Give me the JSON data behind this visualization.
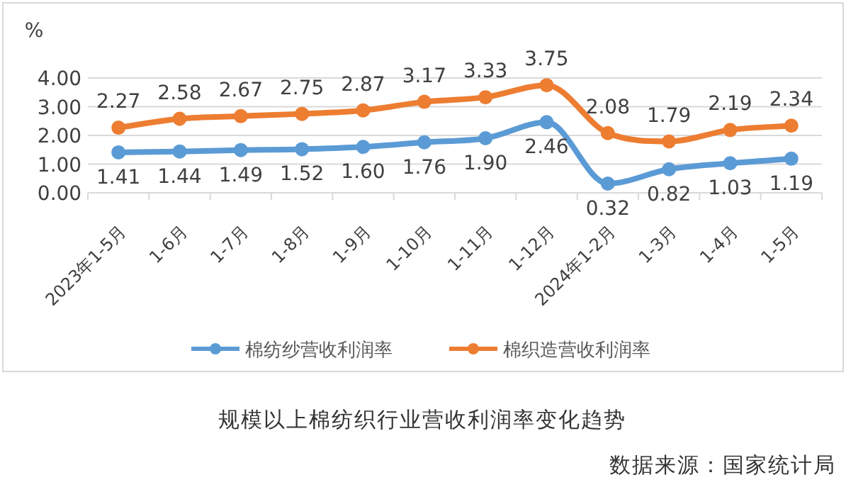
{
  "chart_data": {
    "type": "line",
    "title": "规模以上棉纺织行业营收利润率变化趋势",
    "ylabel": "%",
    "annotations": [
      "数据来源：国家统计局"
    ],
    "categories": [
      "2023年1-5月",
      "1-6月",
      "1-7月",
      "1-8月",
      "1-9月",
      "1-10月",
      "1-11月",
      "1-12月",
      "2024年1-2月",
      "1-3月",
      "1-4月",
      "1-5月"
    ],
    "series": [
      {
        "name": "棉纺纱营收利润率",
        "color": "#5b9bd5",
        "values": [
          1.41,
          1.44,
          1.49,
          1.52,
          1.6,
          1.76,
          1.9,
          2.46,
          0.32,
          0.82,
          1.03,
          1.19
        ],
        "value_labels": [
          "1.41",
          "1.44",
          "1.49",
          "1.52",
          "1.60",
          "1.76",
          "1.90",
          "2.46",
          "0.32",
          "0.82",
          "1.03",
          "1.19"
        ]
      },
      {
        "name": "棉织造营收利润率",
        "color": "#ed7d31",
        "values": [
          2.27,
          2.58,
          2.67,
          2.75,
          2.87,
          3.17,
          3.33,
          3.75,
          2.08,
          1.79,
          2.19,
          2.34
        ],
        "value_labels": [
          "2.27",
          "2.58",
          "2.67",
          "2.75",
          "2.87",
          "3.17",
          "3.33",
          "3.75",
          "2.08",
          "1.79",
          "2.19",
          "2.34"
        ]
      }
    ],
    "ylim": [
      0,
      4
    ],
    "yticks": [
      {
        "value": 0,
        "label": "0.00"
      },
      {
        "value": 1,
        "label": "1.00"
      },
      {
        "value": 2,
        "label": "2.00"
      },
      {
        "value": 3,
        "label": "3.00"
      },
      {
        "value": 4,
        "label": "4.00"
      }
    ],
    "grid": "y",
    "legend": "bottom",
    "marker": "circle",
    "line_style": "solid"
  }
}
